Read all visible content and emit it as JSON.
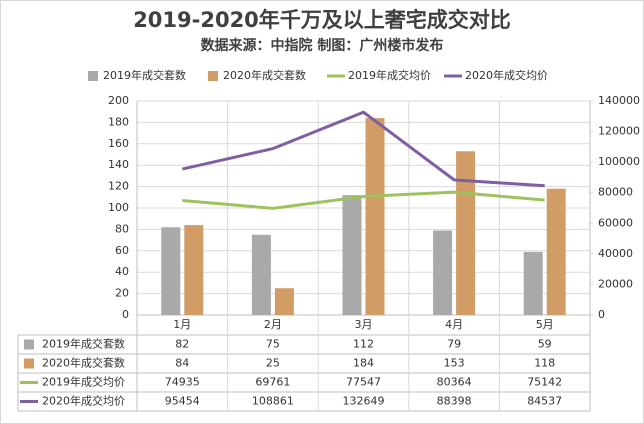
{
  "chart_data": {
    "type": "combo",
    "title": "2019-2020年千万及以上奢宅成交对比",
    "subtitle": "数据来源：中指院 制图：广州楼市发布",
    "categories": [
      "1月",
      "2月",
      "3月",
      "4月",
      "5月"
    ],
    "series": [
      {
        "name": "2019年成交套数",
        "type": "bar",
        "color": "#a9a9a9",
        "values": [
          82,
          75,
          112,
          79,
          59
        ]
      },
      {
        "name": "2020年成交套数",
        "type": "bar",
        "color": "#d19c66",
        "values": [
          84,
          25,
          184,
          153,
          118
        ]
      },
      {
        "name": "2019年成交均价",
        "type": "line",
        "axis": "y2",
        "color": "#9dc35e",
        "values": [
          74935,
          69761,
          77547,
          80364,
          75142
        ]
      },
      {
        "name": "2020年成交均价",
        "type": "line",
        "axis": "y2",
        "color": "#7e5fa3",
        "values": [
          95454,
          108861,
          132649,
          88398,
          84537
        ]
      }
    ],
    "ylim": [
      0,
      200
    ],
    "yticks": [
      0,
      20,
      40,
      60,
      80,
      100,
      120,
      140,
      160,
      180,
      200
    ],
    "y2lim": [
      0,
      140000
    ],
    "y2ticks": [
      0,
      20000,
      40000,
      60000,
      80000,
      100000,
      120000,
      140000
    ],
    "grid": true,
    "legend": "top",
    "data_table": true
  }
}
